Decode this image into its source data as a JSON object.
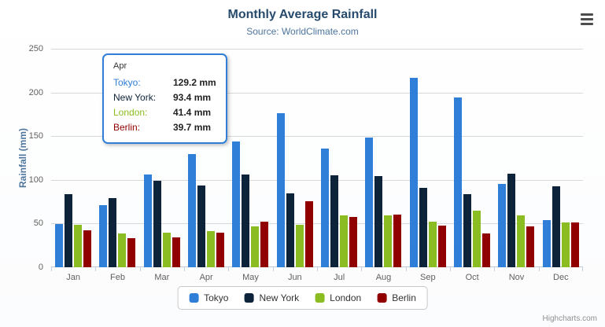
{
  "credits": "Highcharts.com",
  "icons": {
    "context_menu": "hamburger-menu"
  },
  "chart_data": {
    "type": "bar",
    "title": "Monthly Average Rainfall",
    "subtitle": "Source: WorldClimate.com",
    "xlabel": "",
    "ylabel": "Rainfall (mm)",
    "ylim": [
      0,
      250
    ],
    "yticks": [
      0,
      50,
      100,
      150,
      200,
      250
    ],
    "grid": true,
    "legend_position": "bottom",
    "categories": [
      "Jan",
      "Feb",
      "Mar",
      "Apr",
      "May",
      "Jun",
      "Jul",
      "Aug",
      "Sep",
      "Oct",
      "Nov",
      "Dec"
    ],
    "series": [
      {
        "name": "Tokyo",
        "color": "#2f7ed8",
        "values": [
          49.9,
          71.5,
          106.4,
          129.2,
          144.0,
          176.0,
          135.6,
          148.5,
          216.4,
          194.1,
          95.6,
          54.4
        ]
      },
      {
        "name": "New York",
        "color": "#0d233a",
        "values": [
          83.6,
          78.8,
          98.5,
          93.4,
          106.0,
          84.5,
          105.0,
          104.3,
          91.2,
          83.5,
          106.6,
          92.3
        ]
      },
      {
        "name": "London",
        "color": "#8bbc21",
        "values": [
          48.9,
          38.8,
          39.3,
          41.4,
          47.0,
          48.3,
          59.0,
          59.6,
          52.4,
          65.2,
          59.3,
          51.2
        ]
      },
      {
        "name": "Berlin",
        "color": "#910000",
        "values": [
          42.4,
          33.2,
          34.5,
          39.7,
          52.6,
          75.5,
          57.4,
          60.4,
          47.6,
          39.1,
          46.8,
          51.1
        ]
      }
    ]
  },
  "tooltip": {
    "header": "Apr",
    "border_color": "#2f7ed8",
    "rows": [
      {
        "name": "Tokyo",
        "value": "129.2 mm",
        "color": "#2f7ed8"
      },
      {
        "name": "New York",
        "value": "93.4 mm",
        "color": "#0d233a"
      },
      {
        "name": "London",
        "value": "41.4 mm",
        "color": "#8bbc21"
      },
      {
        "name": "Berlin",
        "value": "39.7 mm",
        "color": "#910000"
      }
    ]
  }
}
